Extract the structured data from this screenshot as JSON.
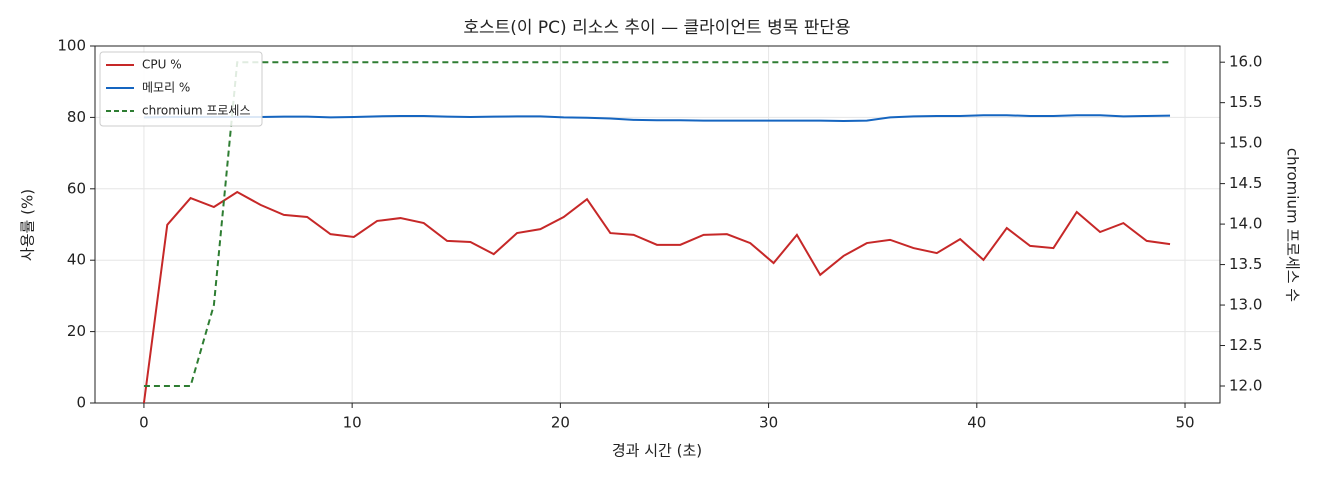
{
  "chart_data": {
    "type": "line",
    "title": "호스트(이 PC) 리소스 추이 — 클라이언트 병목 판단용",
    "x_label": "경과 시간 (초)",
    "y_label": "사용률 (%)",
    "y2_label": "chromium 프로세스 수",
    "x": [
      0,
      1.12,
      2.24,
      3.36,
      4.48,
      5.6,
      6.72,
      7.84,
      8.96,
      10.08,
      11.2,
      12.32,
      13.44,
      14.56,
      15.68,
      16.8,
      17.92,
      19.04,
      20.16,
      21.28,
      22.4,
      23.52,
      24.64,
      25.76,
      26.88,
      28,
      29.12,
      30.24,
      31.36,
      32.48,
      33.6,
      34.72,
      35.84,
      36.96,
      38.08,
      39.2,
      40.32,
      41.44,
      42.56,
      43.68,
      44.8,
      45.92,
      47.04,
      48.16,
      49.28
    ],
    "series": [
      {
        "name": "CPU %",
        "color": "#c62828",
        "linestyle": "solid",
        "axis": "y",
        "values": [
          0,
          49.9,
          57.4,
          54.9,
          59.1,
          55.5,
          52.7,
          52.1,
          47.3,
          46.5,
          51.0,
          51.8,
          50.4,
          45.4,
          45.1,
          41.7,
          47.6,
          48.7,
          52.1,
          57.1,
          47.6,
          47.1,
          44.3,
          44.3,
          47.1,
          47.3,
          44.8,
          39.2,
          47.1,
          35.9,
          41.2,
          44.8,
          45.7,
          43.4,
          42.0,
          45.9,
          40.1,
          49.0,
          44.0,
          43.4,
          53.5,
          47.9,
          50.4,
          45.4,
          44.5
        ]
      },
      {
        "name": "메모리 %",
        "color": "#1565c0",
        "linestyle": "solid",
        "axis": "y",
        "values": [
          80.0,
          80.1,
          80.1,
          80.1,
          80.1,
          80.1,
          80.2,
          80.2,
          80.0,
          80.1,
          80.3,
          80.4,
          80.4,
          80.2,
          80.1,
          80.2,
          80.3,
          80.3,
          80.0,
          79.9,
          79.7,
          79.3,
          79.2,
          79.2,
          79.1,
          79.1,
          79.1,
          79.1,
          79.1,
          79.1,
          79.0,
          79.1,
          80.0,
          80.3,
          80.4,
          80.4,
          80.6,
          80.6,
          80.4,
          80.4,
          80.6,
          80.6,
          80.3,
          80.4,
          80.5
        ]
      },
      {
        "name": "chromium 프로세스",
        "color": "#2e7d32",
        "linestyle": "dashed",
        "axis": "y2",
        "values": [
          12,
          12,
          12,
          13,
          16,
          16,
          16,
          16,
          16,
          16,
          16,
          16,
          16,
          16,
          16,
          16,
          16,
          16,
          16,
          16,
          16,
          16,
          16,
          16,
          16,
          16,
          16,
          16,
          16,
          16,
          16,
          16,
          16,
          16,
          16,
          16,
          16,
          16,
          16,
          16,
          16,
          16,
          16,
          16,
          16
        ]
      }
    ],
    "xlim": [
      -2.35,
      51.68
    ],
    "xticks": [
      0,
      10,
      20,
      30,
      40,
      50
    ],
    "ylim": [
      0,
      100
    ],
    "yticks": [
      0,
      20,
      40,
      60,
      80,
      100
    ],
    "y2lim": [
      11.79,
      16.2
    ],
    "y2ticks": [
      {
        "value": 12,
        "label": "12.0"
      },
      12.5,
      {
        "value": 13,
        "label": "13.0"
      },
      13.5,
      {
        "value": 14,
        "label": "14.0"
      },
      14.5,
      {
        "value": 15,
        "label": "15.0"
      },
      15.5,
      {
        "value": 16,
        "label": "16.0"
      }
    ],
    "grid": true,
    "legend": "upper left"
  }
}
